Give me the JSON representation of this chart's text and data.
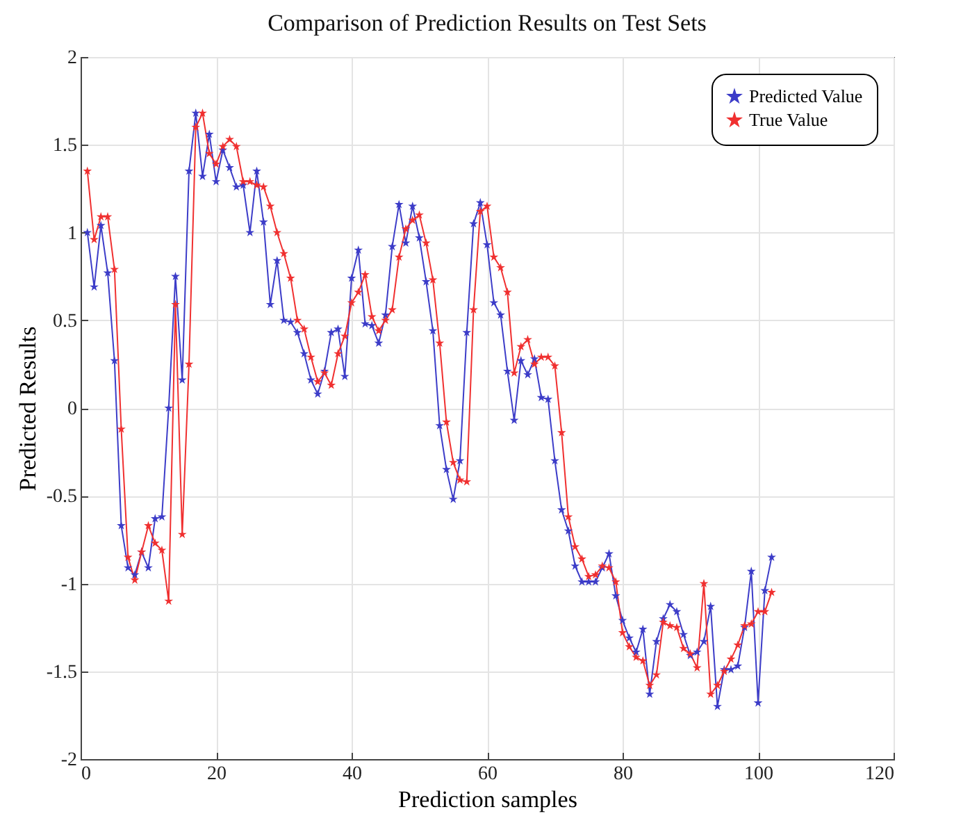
{
  "chart_data": {
    "type": "line",
    "title": "Comparison of Prediction Results on Test Sets",
    "xlabel": "Prediction samples",
    "ylabel": "Predicted Results",
    "x": [
      1,
      2,
      3,
      4,
      5,
      6,
      7,
      8,
      9,
      10,
      11,
      12,
      13,
      14,
      15,
      16,
      17,
      18,
      19,
      20,
      21,
      22,
      23,
      24,
      25,
      26,
      27,
      28,
      29,
      30,
      31,
      32,
      33,
      34,
      35,
      36,
      37,
      38,
      39,
      40,
      41,
      42,
      43,
      44,
      45,
      46,
      47,
      48,
      49,
      50,
      51,
      52,
      53,
      54,
      55,
      56,
      57,
      58,
      59,
      60,
      61,
      62,
      63,
      64,
      65,
      66,
      67,
      68,
      69,
      70,
      71,
      72,
      73,
      74,
      75,
      76,
      77,
      78,
      79,
      80,
      81,
      82,
      83,
      84,
      85,
      86,
      87,
      88,
      89,
      90,
      91,
      92,
      93,
      94,
      95,
      96,
      97,
      98,
      99,
      100,
      101,
      102
    ],
    "series": [
      {
        "name": "Predicted Value",
        "color": "#3c3cc8",
        "values": [
          1.0,
          0.69,
          1.04,
          0.77,
          0.27,
          -0.67,
          -0.91,
          -0.95,
          -0.82,
          -0.91,
          -0.63,
          -0.62,
          0.0,
          0.75,
          0.16,
          1.35,
          1.68,
          1.32,
          1.56,
          1.29,
          1.47,
          1.37,
          1.26,
          1.27,
          1.0,
          1.35,
          1.06,
          0.59,
          0.84,
          0.5,
          0.49,
          0.43,
          0.31,
          0.16,
          0.08,
          0.21,
          0.43,
          0.45,
          0.18,
          0.74,
          0.9,
          0.48,
          0.47,
          0.37,
          0.53,
          0.92,
          1.16,
          0.94,
          1.15,
          0.97,
          0.72,
          0.44,
          -0.1,
          -0.35,
          -0.52,
          -0.3,
          0.43,
          1.05,
          1.17,
          0.93,
          0.6,
          0.53,
          0.21,
          -0.07,
          0.27,
          0.19,
          0.28,
          0.06,
          0.05,
          -0.3,
          -0.58,
          -0.7,
          -0.9,
          -0.99,
          -0.99,
          -0.99,
          -0.91,
          -0.83,
          -1.07,
          -1.21,
          -1.31,
          -1.39,
          -1.26,
          -1.63,
          -1.33,
          -1.2,
          -1.12,
          -1.16,
          -1.29,
          -1.41,
          -1.39,
          -1.33,
          -1.13,
          -1.7,
          -1.49,
          -1.49,
          -1.47,
          -1.25,
          -0.93,
          -1.68,
          -1.04,
          -0.85
        ]
      },
      {
        "name": "True Value",
        "color": "#f03030",
        "values": [
          1.35,
          0.96,
          1.09,
          1.09,
          0.79,
          -0.12,
          -0.85,
          -0.98,
          -0.82,
          -0.67,
          -0.77,
          -0.81,
          -1.1,
          0.59,
          -0.72,
          0.25,
          1.6,
          1.68,
          1.45,
          1.39,
          1.49,
          1.53,
          1.49,
          1.29,
          1.29,
          1.27,
          1.26,
          1.15,
          1.0,
          0.88,
          0.74,
          0.5,
          0.45,
          0.29,
          0.15,
          0.2,
          0.13,
          0.31,
          0.41,
          0.6,
          0.66,
          0.76,
          0.52,
          0.44,
          0.5,
          0.56,
          0.86,
          1.02,
          1.07,
          1.1,
          0.94,
          0.73,
          0.37,
          -0.08,
          -0.31,
          -0.41,
          -0.42,
          0.56,
          1.12,
          1.15,
          0.86,
          0.8,
          0.66,
          0.2,
          0.35,
          0.39,
          0.25,
          0.29,
          0.29,
          0.24,
          -0.14,
          -0.62,
          -0.79,
          -0.86,
          -0.96,
          -0.95,
          -0.9,
          -0.91,
          -0.99,
          -1.28,
          -1.36,
          -1.42,
          -1.44,
          -1.58,
          -1.52,
          -1.22,
          -1.24,
          -1.25,
          -1.37,
          -1.4,
          -1.48,
          -1.0,
          -1.63,
          -1.58,
          -1.5,
          -1.43,
          -1.35,
          -1.24,
          -1.23,
          -1.16,
          -1.16,
          -1.05
        ]
      }
    ],
    "xlim": [
      0,
      120
    ],
    "xticks": [
      0,
      20,
      40,
      60,
      80,
      100,
      120
    ],
    "ylim": [
      -2,
      2
    ],
    "yticks": [
      -2,
      -1.5,
      -1,
      -0.5,
      0,
      0.5,
      1,
      1.5,
      2
    ],
    "grid": true,
    "legend": "top right",
    "marker": "star",
    "line_style": "solid"
  }
}
